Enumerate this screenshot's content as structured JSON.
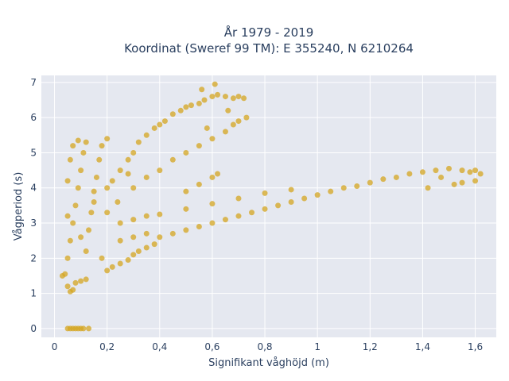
{
  "chart_data": {
    "type": "scatter",
    "title": "År 1979 - 2019",
    "subtitle": "Koordinat (Sweref 99 TM): E 355240, N 6210264",
    "xlabel": "Signifikant våghöjd (m)",
    "ylabel": "Vågperiod (s)",
    "xlim": [
      -0.05,
      1.68
    ],
    "ylim": [
      -0.25,
      7.2
    ],
    "x_ticks": [
      0,
      0.2,
      0.4,
      0.6,
      0.8,
      1,
      1.2,
      1.4,
      1.6
    ],
    "x_tick_labels": [
      "0",
      "0,2",
      "0,4",
      "0,6",
      "0,8",
      "1",
      "1,2",
      "1,4",
      "1,6"
    ],
    "y_ticks": [
      0,
      1,
      2,
      3,
      4,
      5,
      6,
      7
    ],
    "y_tick_labels": [
      "0",
      "1",
      "2",
      "3",
      "4",
      "5",
      "6",
      "7"
    ],
    "grid": true,
    "marker_color": "#d4a520",
    "plot_bgcolor": "#e5e8f0",
    "series": [
      {
        "points": [
          [
            0.05,
            0
          ],
          [
            0.06,
            0
          ],
          [
            0.07,
            0
          ],
          [
            0.08,
            0
          ],
          [
            0.09,
            0
          ],
          [
            0.1,
            0
          ],
          [
            0.11,
            0
          ],
          [
            0.13,
            0
          ],
          [
            0.03,
            1.5
          ],
          [
            0.04,
            1.55
          ],
          [
            0.05,
            1.2
          ],
          [
            0.06,
            1.05
          ],
          [
            0.07,
            1.1
          ],
          [
            0.08,
            1.3
          ],
          [
            0.1,
            1.35
          ],
          [
            0.12,
            1.4
          ],
          [
            0.05,
            2.0
          ],
          [
            0.06,
            2.5
          ],
          [
            0.07,
            3.0
          ],
          [
            0.08,
            3.5
          ],
          [
            0.09,
            4.0
          ],
          [
            0.1,
            4.5
          ],
          [
            0.11,
            5.0
          ],
          [
            0.09,
            5.35
          ],
          [
            0.12,
            2.2
          ],
          [
            0.13,
            2.8
          ],
          [
            0.14,
            3.3
          ],
          [
            0.15,
            3.9
          ],
          [
            0.16,
            4.3
          ],
          [
            0.17,
            4.8
          ],
          [
            0.18,
            5.2
          ],
          [
            0.2,
            5.4
          ],
          [
            0.2,
            1.65
          ],
          [
            0.22,
            1.75
          ],
          [
            0.25,
            1.85
          ],
          [
            0.28,
            1.95
          ],
          [
            0.3,
            2.1
          ],
          [
            0.32,
            2.2
          ],
          [
            0.35,
            2.3
          ],
          [
            0.38,
            2.4
          ],
          [
            0.22,
            4.2
          ],
          [
            0.25,
            4.5
          ],
          [
            0.28,
            4.8
          ],
          [
            0.3,
            5.0
          ],
          [
            0.32,
            5.3
          ],
          [
            0.35,
            5.5
          ],
          [
            0.38,
            5.7
          ],
          [
            0.4,
            5.8
          ],
          [
            0.42,
            5.9
          ],
          [
            0.45,
            6.1
          ],
          [
            0.48,
            6.2
          ],
          [
            0.5,
            6.3
          ],
          [
            0.52,
            6.35
          ],
          [
            0.55,
            6.4
          ],
          [
            0.57,
            6.5
          ],
          [
            0.6,
            6.6
          ],
          [
            0.62,
            6.65
          ],
          [
            0.65,
            6.6
          ],
          [
            0.68,
            6.55
          ],
          [
            0.7,
            6.6
          ],
          [
            0.72,
            6.55
          ],
          [
            0.61,
            6.95
          ],
          [
            0.56,
            6.8
          ],
          [
            0.66,
            6.2
          ],
          [
            0.3,
            4.0
          ],
          [
            0.35,
            4.3
          ],
          [
            0.4,
            4.5
          ],
          [
            0.45,
            4.8
          ],
          [
            0.5,
            5.0
          ],
          [
            0.55,
            5.2
          ],
          [
            0.6,
            5.4
          ],
          [
            0.65,
            5.6
          ],
          [
            0.4,
            2.6
          ],
          [
            0.45,
            2.7
          ],
          [
            0.5,
            2.8
          ],
          [
            0.55,
            2.9
          ],
          [
            0.6,
            3.0
          ],
          [
            0.65,
            3.1
          ],
          [
            0.7,
            3.2
          ],
          [
            0.75,
            3.3
          ],
          [
            0.8,
            3.4
          ],
          [
            0.85,
            3.5
          ],
          [
            0.9,
            3.6
          ],
          [
            0.95,
            3.7
          ],
          [
            1.0,
            3.8
          ],
          [
            1.05,
            3.9
          ],
          [
            1.1,
            4.0
          ],
          [
            1.15,
            4.05
          ],
          [
            1.2,
            4.15
          ],
          [
            1.25,
            4.25
          ],
          [
            1.3,
            4.3
          ],
          [
            1.35,
            4.4
          ],
          [
            1.4,
            4.45
          ],
          [
            1.45,
            4.5
          ],
          [
            1.5,
            4.55
          ],
          [
            1.55,
            4.5
          ],
          [
            1.58,
            4.45
          ],
          [
            1.6,
            4.5
          ],
          [
            1.62,
            4.4
          ],
          [
            1.52,
            4.1
          ],
          [
            1.55,
            4.15
          ],
          [
            1.6,
            4.2
          ],
          [
            1.47,
            4.3
          ],
          [
            1.42,
            4.0
          ],
          [
            0.3,
            3.1
          ],
          [
            0.35,
            3.2
          ],
          [
            0.4,
            3.25
          ],
          [
            0.5,
            3.4
          ],
          [
            0.6,
            3.55
          ],
          [
            0.7,
            3.7
          ],
          [
            0.8,
            3.85
          ],
          [
            0.9,
            3.95
          ],
          [
            0.25,
            3.0
          ],
          [
            0.2,
            3.3
          ],
          [
            0.15,
            3.6
          ],
          [
            0.25,
            2.5
          ],
          [
            0.3,
            2.6
          ],
          [
            0.35,
            2.7
          ],
          [
            0.18,
            2.0
          ],
          [
            0.1,
            2.6
          ],
          [
            0.05,
            3.2
          ],
          [
            0.05,
            4.2
          ],
          [
            0.06,
            4.8
          ],
          [
            0.07,
            5.2
          ],
          [
            0.12,
            5.3
          ],
          [
            0.2,
            4.0
          ],
          [
            0.24,
            3.6
          ],
          [
            0.28,
            4.4
          ],
          [
            0.5,
            3.9
          ],
          [
            0.55,
            4.1
          ],
          [
            0.6,
            4.3
          ],
          [
            0.62,
            4.4
          ],
          [
            0.68,
            5.8
          ],
          [
            0.7,
            5.9
          ],
          [
            0.73,
            6.0
          ],
          [
            0.58,
            5.7
          ]
        ]
      }
    ]
  }
}
